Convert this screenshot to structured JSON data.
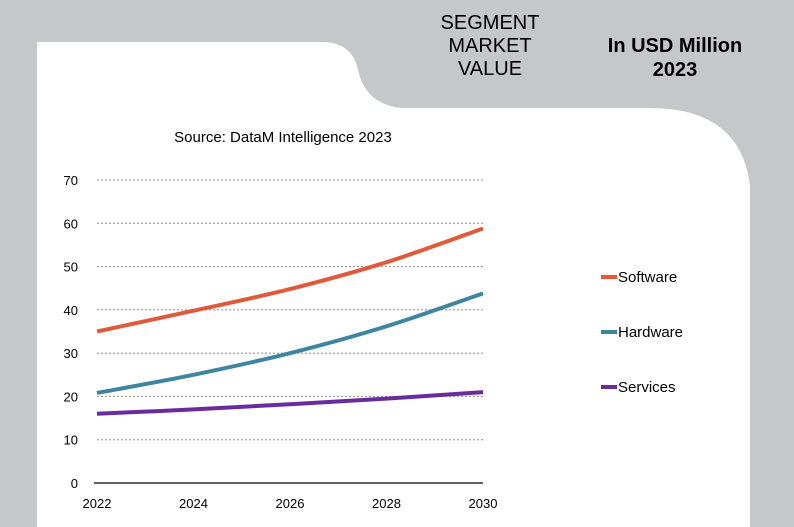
{
  "header": {
    "segment_title": "SEGMENT\nMARKET\nVALUE",
    "unit_title": "In USD Million\n2023"
  },
  "colors": {
    "software": "#e0593a",
    "hardware": "#3e86a0",
    "services": "#6a2b9e",
    "panel": "#ffffff",
    "frame": "#c6c7c9"
  },
  "chart_data": {
    "type": "line",
    "subtitle": "Source: DataM Intelligence  2023",
    "x": [
      2022,
      2024,
      2026,
      2028,
      2030
    ],
    "xticks": [
      "2022",
      "2024",
      "2026",
      "2028",
      "2030"
    ],
    "ylim": [
      0,
      70
    ],
    "yticks": [
      "0",
      "10",
      "20",
      "30",
      "40",
      "50",
      "60",
      "70"
    ],
    "grid": true,
    "legend_position": "right",
    "series": [
      {
        "name": "Software",
        "color": "#e0593a",
        "values": [
          35,
          39.8,
          44.8,
          51,
          58.8
        ]
      },
      {
        "name": "Hardware",
        "color": "#3e86a0",
        "values": [
          20.8,
          25,
          30,
          36.2,
          43.8
        ]
      },
      {
        "name": "Services",
        "color": "#6a2b9e",
        "values": [
          16,
          17,
          18.2,
          19.5,
          21
        ]
      }
    ]
  }
}
